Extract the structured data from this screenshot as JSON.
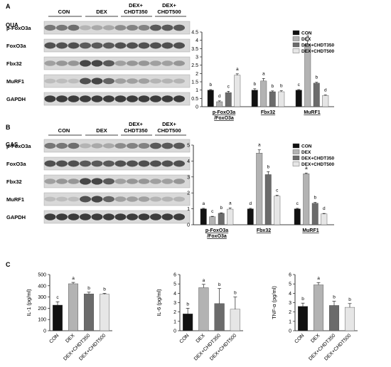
{
  "panels": {
    "A": {
      "letter": "A",
      "tissue": "QUA"
    },
    "B": {
      "letter": "B",
      "tissue": "GAS"
    },
    "C": {
      "letter": "C"
    }
  },
  "blot_headers": {
    "con": "CON",
    "dex": "DEX",
    "dex350_l1": "DEX+",
    "dex350_l2": "CHDT350",
    "dex500_l1": "DEX+",
    "dex500_l2": "CHDT500"
  },
  "blot_rows": [
    "p-FoxO3a",
    "FoxO3a",
    "Fbx32",
    "MuRF1",
    "GAPDH"
  ],
  "legend": [
    "CON",
    "DEX",
    "DEX+CHDT350",
    "DEX+CHDT500"
  ],
  "colors": {
    "CON": "#111111",
    "DEX": "#b3b3b3",
    "DEX+CHDT350": "#6b6b6b",
    "DEX+CHDT500": "#e6e6e6",
    "edge": "#444444"
  },
  "chart_data": [
    {
      "type": "bar",
      "panel": "A",
      "categories": [
        "p-FoxO3a\n/FoxO3a",
        "Fbx32",
        "MuRF1"
      ],
      "ylim": [
        0,
        4.5
      ],
      "yticks": [
        0,
        0.5,
        1,
        1.5,
        2,
        2.5,
        3,
        3.5,
        4,
        4.5
      ],
      "series": [
        {
          "name": "CON",
          "values": [
            1.0,
            1.0,
            1.0
          ],
          "errors": [
            0.03,
            0.08,
            0.03
          ],
          "letters": [
            "b",
            "b",
            "c"
          ]
        },
        {
          "name": "DEX",
          "values": [
            0.3,
            1.55,
            3.75
          ],
          "errors": [
            0.05,
            0.15,
            0.2
          ],
          "letters": [
            "d",
            "a",
            "a"
          ]
        },
        {
          "name": "DEX+CHDT350",
          "values": [
            0.85,
            0.9,
            1.42
          ],
          "errors": [
            0.08,
            0.05,
            0.05
          ],
          "letters": [
            "c",
            "b",
            "b"
          ]
        },
        {
          "name": "DEX+CHDT500",
          "values": [
            1.9,
            0.9,
            0.68
          ],
          "errors": [
            0.08,
            0.06,
            0.03
          ],
          "letters": [
            "a",
            "b",
            "d"
          ]
        }
      ]
    },
    {
      "type": "bar",
      "panel": "B",
      "categories": [
        "p-FoxO3a\n/FoxO3a",
        "Fbx32",
        "MuRF1"
      ],
      "ylim": [
        0,
        5
      ],
      "yticks": [
        0,
        1,
        2,
        3,
        4,
        5
      ],
      "series": [
        {
          "name": "CON",
          "values": [
            1.0,
            1.0,
            1.0
          ],
          "errors": [
            0.03,
            0.03,
            0.03
          ],
          "letters": [
            "a",
            "d",
            "c"
          ]
        },
        {
          "name": "DEX",
          "values": [
            0.5,
            4.5,
            3.2
          ],
          "errors": [
            0.03,
            0.2,
            0.05
          ],
          "letters": [
            "c",
            "a",
            "a"
          ]
        },
        {
          "name": "DEX+CHDT350",
          "values": [
            0.72,
            3.15,
            1.35
          ],
          "errors": [
            0.03,
            0.18,
            0.05
          ],
          "letters": [
            "b",
            "b",
            "b"
          ]
        },
        {
          "name": "DEX+CHDT500",
          "values": [
            0.98,
            1.8,
            0.68
          ],
          "errors": [
            0.08,
            0.05,
            0.03
          ],
          "letters": [
            "a",
            "c",
            "d"
          ]
        }
      ]
    },
    {
      "type": "bar",
      "panel": "C",
      "categories": [
        "CON",
        "DEX",
        "DEX+CHDT350",
        "DEX+CHDT500"
      ],
      "ylabel": "IL-1 (pg/ml)",
      "ylim": [
        0,
        500
      ],
      "yticks": [
        0,
        100,
        200,
        300,
        400,
        500
      ],
      "values": [
        228,
        418,
        328,
        325
      ],
      "errors": [
        30,
        12,
        15,
        8
      ],
      "letters": [
        "c",
        "a",
        "b",
        "b"
      ]
    },
    {
      "type": "bar",
      "panel": "C",
      "categories": [
        "CON",
        "DEX",
        "DEX+CHDT350",
        "DEX+CHDT500"
      ],
      "ylabel": "IL-6 (pg/ml)",
      "ylim": [
        0,
        6
      ],
      "yticks": [
        0,
        1,
        2,
        3,
        4,
        5,
        6
      ],
      "values": [
        1.8,
        4.6,
        2.9,
        2.3
      ],
      "errors": [
        0.6,
        0.35,
        1.6,
        1.3
      ],
      "letters": [
        "b",
        "a",
        "b",
        "b"
      ]
    },
    {
      "type": "bar",
      "panel": "C",
      "categories": [
        "CON",
        "DEX",
        "DEX+CHDT350",
        "DEX+CHDT500"
      ],
      "ylabel": "TNF-α (pg/ml)",
      "ylim": [
        0,
        6
      ],
      "yticks": [
        0,
        1,
        2,
        3,
        4,
        5,
        6
      ],
      "values": [
        2.6,
        4.9,
        2.7,
        2.5
      ],
      "errors": [
        0.35,
        0.25,
        0.45,
        0.4
      ],
      "letters": [
        "b",
        "a",
        "b",
        "b"
      ]
    }
  ]
}
